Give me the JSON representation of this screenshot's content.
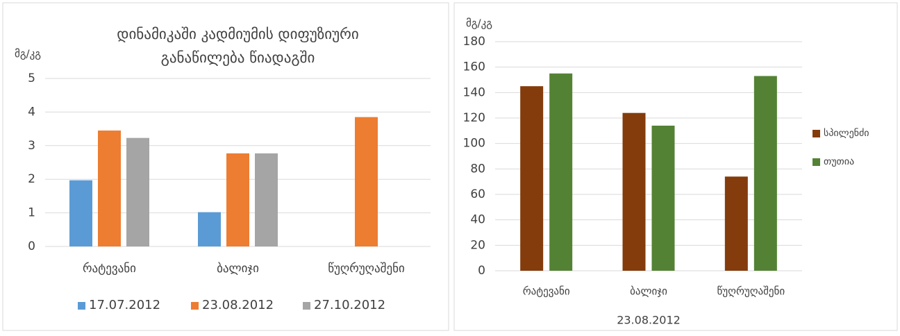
{
  "chart_data": [
    {
      "type": "bar",
      "title": [
        "დინამიკაში კადმიუმის დიფუზიური",
        "განაწილება წიადაგში"
      ],
      "y_label": "მგ/კგ",
      "categories": [
        "რატევანი",
        "ბალიჯი",
        "წუღრუღაშენი"
      ],
      "series": [
        {
          "name": "17.07.2012",
          "color": "#5b9bd5",
          "values": [
            1.97,
            1.02,
            null
          ]
        },
        {
          "name": "23.08.2012",
          "color": "#ed7d31",
          "values": [
            3.45,
            2.77,
            3.85
          ]
        },
        {
          "name": "27.10.2012",
          "color": "#a5a5a5",
          "values": [
            3.23,
            2.77,
            null
          ]
        }
      ],
      "ylim": [
        0,
        5
      ],
      "yticks": [
        0,
        1,
        2,
        3,
        4,
        5
      ],
      "grid": true,
      "legend": "bottom"
    },
    {
      "type": "bar",
      "y_label": "მგ/კგ",
      "x_label": "23.08.2012",
      "categories": [
        "რატევანი",
        "ბალიჯი",
        "წუღრუღაშენი"
      ],
      "series": [
        {
          "name": "სპილენძი",
          "color": "#843c0c",
          "values": [
            145,
            124,
            74
          ]
        },
        {
          "name": "თუთია",
          "color": "#548235",
          "values": [
            155,
            114,
            153
          ]
        }
      ],
      "ylim": [
        0,
        180
      ],
      "yticks": [
        0,
        20,
        40,
        60,
        80,
        100,
        120,
        140,
        160,
        180
      ],
      "grid": true,
      "legend": "right"
    }
  ]
}
